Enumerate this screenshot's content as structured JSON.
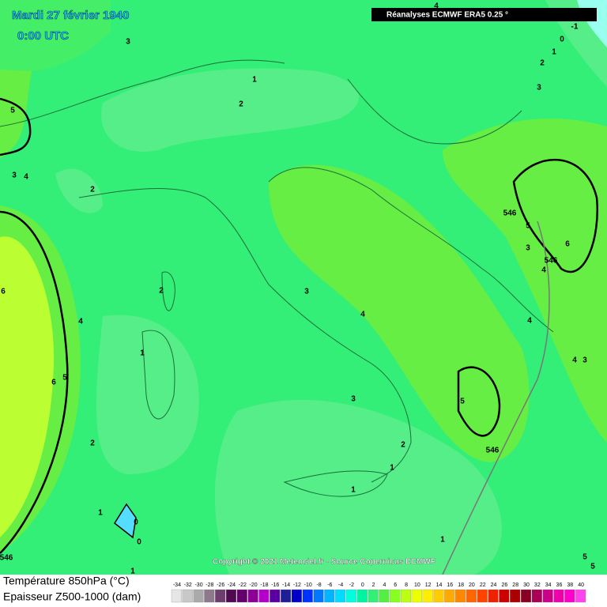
{
  "header": {
    "date": "Mardi 27 février 1940",
    "time": "0:00 UTC",
    "source_box": "Réanalyses ECMWF ERA5 0.25 °",
    "copyright": "Copyright © 2021 Meteociel.fr - Source Copernicus ECMWF"
  },
  "map": {
    "contour_labels": [
      "4",
      "3",
      "1",
      "2",
      "5",
      "3",
      "4",
      "2",
      "546",
      "5",
      "3",
      "6",
      "546",
      "4",
      "6",
      "2",
      "3",
      "4",
      "4",
      "4",
      "1",
      "4",
      "3",
      "6",
      "5",
      "5",
      "3",
      "546",
      "2",
      "2",
      "1",
      "1",
      "1",
      "0",
      "0",
      "1",
      "546",
      "1",
      "5",
      "5",
      "0",
      "1",
      "2",
      "3",
      "-1"
    ]
  },
  "legend": {
    "temperature_label": "Température 850hPa (°C)",
    "thickness_label": "Epaisseur Z500-1000 (dam)",
    "scale_values": [
      -34,
      -32,
      -30,
      -28,
      -26,
      -24,
      -22,
      -20,
      -18,
      -16,
      -14,
      -12,
      -10,
      -8,
      -6,
      -4,
      -2,
      0,
      2,
      4,
      6,
      8,
      10,
      12,
      14,
      16,
      18,
      20,
      22,
      24,
      26,
      28,
      30,
      32,
      34,
      36,
      38,
      40
    ],
    "scale_colors": [
      "#e6e6e6",
      "#c8c8c8",
      "#aaaaaa",
      "#8c7a8c",
      "#6e3c6e",
      "#500a50",
      "#64006e",
      "#8c0096",
      "#b400c8",
      "#5a00a0",
      "#1e1e96",
      "#0000c8",
      "#0032ff",
      "#0078ff",
      "#00b4ff",
      "#00dcff",
      "#00ffdc",
      "#00f5a0",
      "#33ee77",
      "#55ee44",
      "#88ff22",
      "#bbff11",
      "#eeff00",
      "#ffee00",
      "#ffcc00",
      "#ffaa00",
      "#ff8800",
      "#ff6600",
      "#ff4400",
      "#ee2200",
      "#cc0000",
      "#aa0000",
      "#880022",
      "#aa0055",
      "#cc0088",
      "#ee00aa",
      "#ff00cc",
      "#ff44ee"
    ]
  }
}
